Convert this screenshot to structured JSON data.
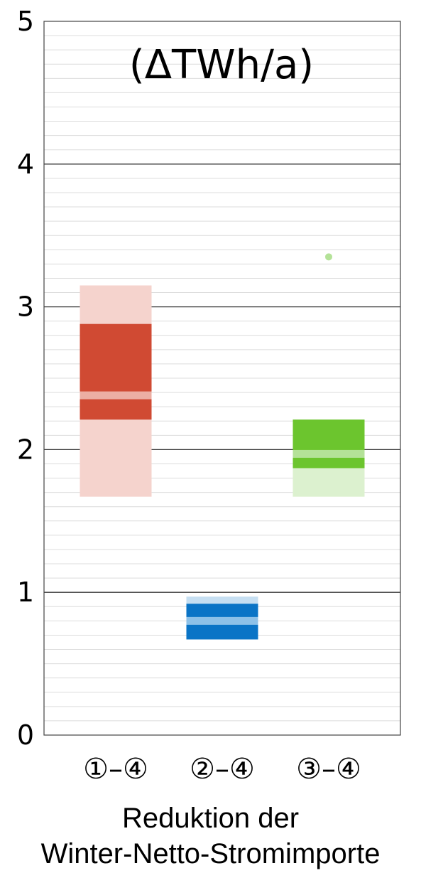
{
  "chart_data": {
    "type": "bar",
    "title": "(ΔTWh/a)",
    "ylim": [
      0,
      5
    ],
    "yticks": [
      "0",
      "1",
      "2",
      "3",
      "4",
      "5"
    ],
    "minor_grid_step": 0.1,
    "grid": true,
    "categories": [
      "①–④",
      "②–④",
      "③–④"
    ],
    "xlabel_lines": [
      "Reduktion der",
      "Winter-Netto-Stromimporte"
    ],
    "colors": {
      "red": "#d04a33",
      "red_light": "#f5d3cd",
      "red_median": "#ecaea3",
      "blue": "#0a74c6",
      "blue_light": "#c6dff2",
      "blue_median": "#8dc1e8",
      "green": "#6cc52e",
      "green_light": "#dcf1cf",
      "green_median": "#b4e298"
    },
    "series": [
      {
        "category": "①–④",
        "color": "red",
        "range_low": 1.67,
        "range_high": 3.15,
        "box_low": 2.21,
        "box_high": 2.88,
        "median": 2.38,
        "outliers": []
      },
      {
        "category": "②–④",
        "color": "blue",
        "range_low": 0.67,
        "range_high": 0.97,
        "box_low": 0.67,
        "box_high": 0.92,
        "median": 0.8,
        "outliers": []
      },
      {
        "category": "③–④",
        "color": "green",
        "range_low": 1.67,
        "range_high": 2.21,
        "box_low": 1.87,
        "box_high": 2.21,
        "median": 1.97,
        "outliers": [
          3.35
        ]
      }
    ]
  }
}
